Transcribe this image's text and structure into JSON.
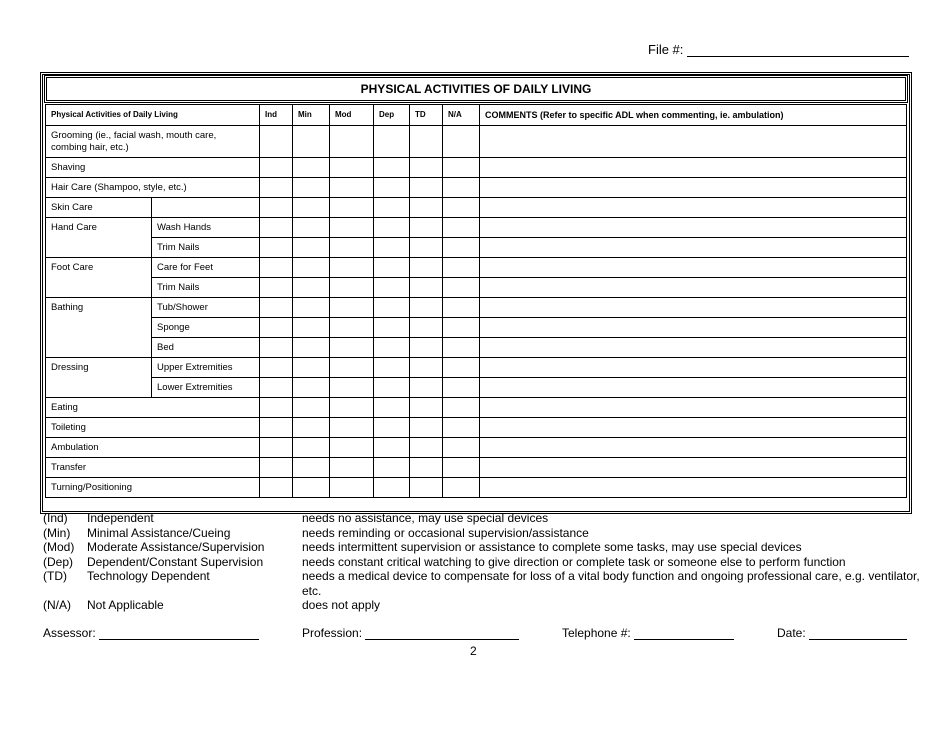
{
  "file_label": "File #:",
  "title": "PHYSICAL  ACTIVITIES OF DAILY LIVING",
  "table": {
    "headers": [
      "Physical Activities of Daily Living",
      "Ind",
      "Min",
      "Mod",
      "Dep",
      "TD",
      "N/A",
      "COMMENTS (Refer to specific ADL when commenting, ie. ambulation)"
    ],
    "rows": [
      {
        "main": "Grooming (ie., facial wash, mouth care, combing hair, etc.)",
        "span": 1,
        "subs": null
      },
      {
        "main": "Shaving",
        "span": 1,
        "subs": null
      },
      {
        "main": "Hair Care (Shampoo, style, etc.)",
        "span": 1,
        "subs": null
      },
      {
        "main": "Skin Care",
        "span": 1,
        "subs": [
          ""
        ]
      },
      {
        "main": "Hand Care",
        "span": 2,
        "subs": [
          "Wash Hands",
          "Trim Nails"
        ]
      },
      {
        "main": "Foot Care",
        "span": 2,
        "subs": [
          "Care for Feet",
          "Trim Nails"
        ]
      },
      {
        "main": "Bathing",
        "span": 3,
        "subs": [
          "Tub/Shower",
          "Sponge",
          "Bed"
        ]
      },
      {
        "main": "Dressing",
        "span": 2,
        "subs": [
          "Upper Extremities",
          "Lower Extremities"
        ]
      },
      {
        "main": "Eating",
        "span": 1,
        "subs": null
      },
      {
        "main": "Toileting",
        "span": 1,
        "subs": null
      },
      {
        "main": "Ambulation",
        "span": 1,
        "subs": null
      },
      {
        "main": "Transfer",
        "span": 1,
        "subs": null
      },
      {
        "main": "Turning/Positioning",
        "span": 1,
        "subs": null
      }
    ]
  },
  "legend": [
    {
      "code": "(Ind)",
      "name": "Independent",
      "desc": "needs no assistance, may use special devices"
    },
    {
      "code": "(Min)",
      "name": "Minimal Assistance/Cueing",
      "desc": "needs reminding or occasional supervision/assistance"
    },
    {
      "code": "(Mod)",
      "name": "Moderate Assistance/Supervision",
      "desc": "needs intermittent supervision or assistance to complete some tasks, may use special devices"
    },
    {
      "code": "(Dep)",
      "name": "Dependent/Constant Supervision",
      "desc": "needs constant critical watching to give direction or complete task or someone else to perform function"
    },
    {
      "code": "(TD)",
      "name": "Technology Dependent",
      "desc": "needs a medical device to compensate for loss of a vital body function and ongoing professional care, e.g. ventilator,"
    },
    {
      "code": "",
      "name": "",
      "desc": "etc."
    },
    {
      "code": "(N/A)",
      "name": "Not Applicable",
      "desc": "does not apply"
    }
  ],
  "footer": {
    "assessor": "Assessor:",
    "profession": "Profession:",
    "telephone": "Telephone #:",
    "date": "Date:"
  },
  "page_number": "2"
}
